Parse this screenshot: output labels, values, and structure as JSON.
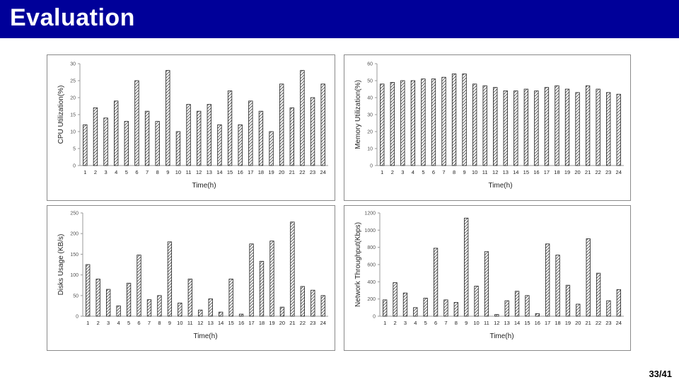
{
  "slide": {
    "title": "Evaluation",
    "page_number": "33/41"
  },
  "colors": {
    "title_bar": "#000099",
    "title_text": "#ffffff",
    "bar_stroke": "#222222"
  },
  "chart_data": [
    {
      "type": "bar",
      "title": "",
      "xlabel": "Time(h)",
      "ylabel": "CPU Utilization(%)",
      "ylim": [
        0,
        30
      ],
      "yticks": [
        0,
        5,
        10,
        15,
        20,
        25,
        30
      ],
      "categories": [
        "1",
        "2",
        "3",
        "4",
        "5",
        "6",
        "7",
        "8",
        "9",
        "10",
        "11",
        "12",
        "13",
        "14",
        "15",
        "16",
        "17",
        "18",
        "19",
        "20",
        "21",
        "22",
        "23",
        "24"
      ],
      "values": [
        12,
        17,
        14,
        19,
        13,
        25,
        16,
        13,
        28,
        10,
        18,
        16,
        18,
        12,
        22,
        12,
        19,
        16,
        10,
        24,
        17,
        28,
        20,
        24
      ]
    },
    {
      "type": "bar",
      "title": "",
      "xlabel": "Time(h)",
      "ylabel": "Memory Utilization(%)",
      "ylim": [
        0,
        60
      ],
      "yticks": [
        0,
        10,
        20,
        30,
        40,
        50,
        60
      ],
      "categories": [
        "1",
        "2",
        "3",
        "4",
        "5",
        "6",
        "7",
        "8",
        "9",
        "10",
        "11",
        "12",
        "13",
        "14",
        "15",
        "16",
        "17",
        "18",
        "19",
        "20",
        "21",
        "22",
        "23",
        "24"
      ],
      "values": [
        48,
        49,
        50,
        50,
        51,
        51,
        52,
        54,
        54,
        48,
        47,
        46,
        44,
        44,
        45,
        44,
        46,
        47,
        45,
        43,
        47,
        45,
        43,
        42
      ]
    },
    {
      "type": "bar",
      "title": "",
      "xlabel": "Time(h)",
      "ylabel": "Disks Usage (KB/s)",
      "ylim": [
        0,
        250
      ],
      "yticks": [
        0,
        50,
        100,
        150,
        200,
        250
      ],
      "categories": [
        "1",
        "2",
        "3",
        "4",
        "5",
        "6",
        "7",
        "8",
        "9",
        "10",
        "11",
        "12",
        "13",
        "14",
        "15",
        "16",
        "17",
        "18",
        "19",
        "20",
        "21",
        "22",
        "23",
        "24"
      ],
      "values": [
        125,
        90,
        65,
        25,
        80,
        148,
        40,
        50,
        180,
        32,
        90,
        15,
        42,
        10,
        90,
        5,
        175,
        133,
        182,
        22,
        228,
        72,
        63,
        50
      ]
    },
    {
      "type": "bar",
      "title": "",
      "xlabel": "Time(h)",
      "ylabel": "Network Throughput(Kbps)",
      "ylim": [
        0,
        1200
      ],
      "yticks": [
        0,
        200,
        400,
        600,
        800,
        1000,
        1200
      ],
      "categories": [
        "1",
        "2",
        "3",
        "4",
        "5",
        "6",
        "7",
        "8",
        "9",
        "10",
        "11",
        "12",
        "13",
        "14",
        "15",
        "16",
        "17",
        "18",
        "19",
        "20",
        "21",
        "22",
        "23",
        "24"
      ],
      "values": [
        190,
        390,
        270,
        100,
        210,
        790,
        190,
        160,
        1140,
        350,
        750,
        20,
        180,
        290,
        240,
        30,
        840,
        710,
        360,
        140,
        900,
        500,
        180,
        310
      ]
    }
  ]
}
